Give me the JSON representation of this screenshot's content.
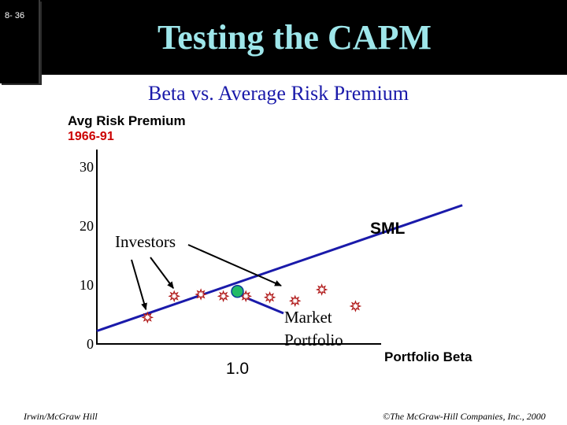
{
  "slide": {
    "number": "8- 36",
    "title": "Testing the CAPM",
    "subtitle": "Beta vs. Average Risk Premium"
  },
  "footer": {
    "left": "Irwin/McGraw Hill",
    "right": "©The McGraw-Hill Companies, Inc., 2000"
  },
  "colors": {
    "title": "#9ee6ea",
    "subtitle": "#1a1aaa",
    "period": "#cc0000",
    "market_point": "#22bb66",
    "star": "#b01818"
  },
  "chart_data": {
    "type": "scatter",
    "ylabel": "Avg Risk Premium",
    "ylabel_sub": "1966-91",
    "xlabel": "Portfolio Beta",
    "y_ticks": [
      "30",
      "20",
      "10",
      "0"
    ],
    "x_ticks": [
      "1.0"
    ],
    "ylim": [
      0,
      30
    ],
    "xlim": [
      0,
      2
    ],
    "series": [
      {
        "marker": "star",
        "points": [
          {
            "x": 0.36,
            "y": 4.5
          },
          {
            "x": 0.55,
            "y": 8.1
          },
          {
            "x": 0.74,
            "y": 8.4
          },
          {
            "x": 0.9,
            "y": 8.1
          },
          {
            "x": 1.06,
            "y": 8.1
          },
          {
            "x": 1.23,
            "y": 7.9
          },
          {
            "x": 1.41,
            "y": 7.3
          },
          {
            "x": 1.6,
            "y": 9.2
          },
          {
            "x": 1.84,
            "y": 6.4
          }
        ]
      },
      {
        "marker": "circle",
        "points": [
          {
            "x": 1.0,
            "y": 8.9
          }
        ]
      }
    ],
    "sml": {
      "from": {
        "x": 0,
        "y": 2.2
      },
      "to": {
        "x": 2.6,
        "y": 23.5
      }
    },
    "annotations": {
      "sml_label": "SML",
      "investors": "Investors",
      "market_line1": "Market",
      "market_line2": "Portfolio"
    }
  }
}
